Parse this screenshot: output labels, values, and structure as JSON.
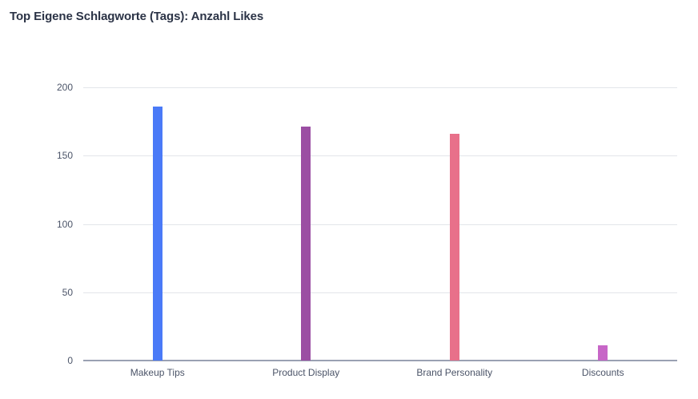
{
  "title": "Top Eigene Schlagworte (Tags): Anzahl Likes",
  "y_ticks": [
    "0",
    "50",
    "100",
    "150",
    "200"
  ],
  "chart_data": {
    "type": "bar",
    "title": "Top Eigene Schlagworte (Tags): Anzahl Likes",
    "xlabel": "",
    "ylabel": "",
    "categories": [
      "Makeup Tips",
      "Product Display",
      "Brand Personality",
      "Discounts"
    ],
    "values": [
      186,
      171,
      166,
      11
    ],
    "colors": [
      "#4a7af7",
      "#9b4ea3",
      "#e8708a",
      "#c766c7"
    ],
    "ylim": [
      0,
      200
    ],
    "yticks": [
      0,
      50,
      100,
      150,
      200
    ],
    "grid": true,
    "legend": "none"
  }
}
